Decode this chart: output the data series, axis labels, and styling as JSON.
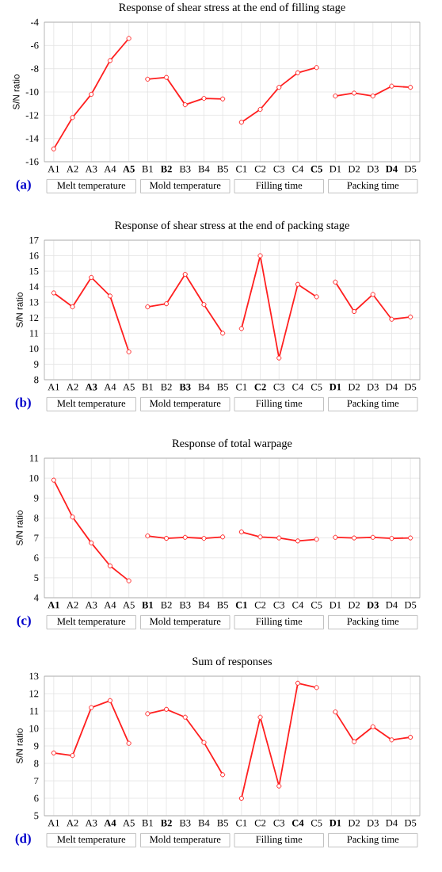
{
  "chart_data": [
    {
      "type": "line",
      "title": "Response of shear stress at the end of filling stage",
      "ylabel": "S/N ratio",
      "categories": [
        "A1",
        "A2",
        "A3",
        "A4",
        "**A5**",
        "B1",
        "**B2**",
        "B3",
        "B4",
        "B5",
        "C1",
        "C2",
        "C3",
        "C4",
        "**C5**",
        "D1",
        "D2",
        "D3",
        "**D4**",
        "D5"
      ],
      "series": [
        {
          "color": "#ff2020",
          "values": [
            -14.9,
            -12.2,
            -10.2,
            -7.3,
            -5.4,
            null,
            null,
            null,
            null,
            null,
            null,
            null,
            null,
            null,
            null,
            null,
            null,
            null,
            null,
            null
          ]
        },
        {
          "color": "#ff2020",
          "values": [
            null,
            null,
            null,
            null,
            null,
            -8.9,
            -8.75,
            -11.1,
            -10.55,
            -10.6,
            null,
            null,
            null,
            null,
            null,
            null,
            null,
            null,
            null,
            null
          ]
        },
        {
          "color": "#ff2020",
          "values": [
            null,
            null,
            null,
            null,
            null,
            null,
            null,
            null,
            null,
            null,
            -12.6,
            -11.5,
            -9.6,
            -8.35,
            -7.9,
            null,
            null,
            null,
            null,
            null
          ]
        },
        {
          "color": "#ff2020",
          "values": [
            null,
            null,
            null,
            null,
            null,
            null,
            null,
            null,
            null,
            null,
            null,
            null,
            null,
            null,
            null,
            -10.35,
            -10.1,
            -10.35,
            -9.5,
            -9.6
          ]
        }
      ],
      "ylim": [
        -16,
        -4
      ],
      "yticks": [
        -16,
        -14,
        -12,
        -10,
        -8,
        -6,
        -4
      ],
      "grid": true,
      "marker": "circle",
      "annotations": [
        "(a)",
        "Melt temperature",
        "Mold temperature",
        "Filling time",
        "Packing time"
      ]
    },
    {
      "type": "line",
      "title": "Response of shear stress at the end of packing stage",
      "ylabel": "S/N ratio",
      "categories": [
        "A1",
        "A2",
        "**A3**",
        "A4",
        "A5",
        "B1",
        "B2",
        "**B3**",
        "B4",
        "B5",
        "C1",
        "**C2**",
        "C3",
        "C4",
        "C5",
        "**D1**",
        "D2",
        "D3",
        "D4",
        "D5"
      ],
      "series": [
        {
          "color": "#ff2020",
          "values": [
            13.6,
            12.7,
            14.6,
            13.4,
            9.8,
            null,
            null,
            null,
            null,
            null,
            null,
            null,
            null,
            null,
            null,
            null,
            null,
            null,
            null,
            null
          ]
        },
        {
          "color": "#ff2020",
          "values": [
            null,
            null,
            null,
            null,
            null,
            12.7,
            12.9,
            14.8,
            12.85,
            11.0,
            null,
            null,
            null,
            null,
            null,
            null,
            null,
            null,
            null,
            null
          ]
        },
        {
          "color": "#ff2020",
          "values": [
            null,
            null,
            null,
            null,
            null,
            null,
            null,
            null,
            null,
            null,
            11.3,
            16.0,
            9.4,
            14.15,
            13.35,
            null,
            null,
            null,
            null,
            null
          ]
        },
        {
          "color": "#ff2020",
          "values": [
            null,
            null,
            null,
            null,
            null,
            null,
            null,
            null,
            null,
            null,
            null,
            null,
            null,
            null,
            null,
            14.3,
            12.4,
            13.5,
            11.9,
            12.05
          ]
        }
      ],
      "ylim": [
        8,
        17
      ],
      "yticks": [
        8,
        9,
        10,
        11,
        12,
        13,
        14,
        15,
        16,
        17
      ],
      "grid": true,
      "marker": "circle",
      "annotations": [
        "(b)",
        "Melt temperature",
        "Mold temperature",
        "Filling time",
        "Packing time"
      ]
    },
    {
      "type": "line",
      "title": "Response of total warpage",
      "ylabel": "S/N ratio",
      "categories": [
        "**A1**",
        "A2",
        "A3",
        "A4",
        "A5",
        "**B1**",
        "B2",
        "B3",
        "B4",
        "B5",
        "**C1**",
        "C2",
        "C3",
        "C4",
        "C5",
        "D1",
        "D2",
        "**D3**",
        "D4",
        "D5"
      ],
      "series": [
        {
          "color": "#ff2020",
          "values": [
            9.9,
            8.05,
            6.75,
            5.6,
            4.85,
            null,
            null,
            null,
            null,
            null,
            null,
            null,
            null,
            null,
            null,
            null,
            null,
            null,
            null,
            null
          ]
        },
        {
          "color": "#ff2020",
          "values": [
            null,
            null,
            null,
            null,
            null,
            7.1,
            6.98,
            7.03,
            6.98,
            7.05,
            null,
            null,
            null,
            null,
            null,
            null,
            null,
            null,
            null,
            null
          ]
        },
        {
          "color": "#ff2020",
          "values": [
            null,
            null,
            null,
            null,
            null,
            null,
            null,
            null,
            null,
            null,
            7.3,
            7.05,
            7.0,
            6.85,
            6.93,
            null,
            null,
            null,
            null,
            null
          ]
        },
        {
          "color": "#ff2020",
          "values": [
            null,
            null,
            null,
            null,
            null,
            null,
            null,
            null,
            null,
            null,
            null,
            null,
            null,
            null,
            null,
            7.03,
            7.0,
            7.03,
            6.98,
            7.0
          ]
        }
      ],
      "ylim": [
        4,
        11
      ],
      "yticks": [
        4,
        5,
        6,
        7,
        8,
        9,
        10,
        11
      ],
      "grid": true,
      "marker": "circle",
      "annotations": [
        "(c)",
        "Melt temperature",
        "Mold temperature",
        "Filling time",
        "Packing time"
      ]
    },
    {
      "type": "line",
      "title": "Sum of responses",
      "ylabel": "S/N ratio",
      "categories": [
        "A1",
        "A2",
        "A3",
        "**A4**",
        "A5",
        "B1",
        "**B2**",
        "B3",
        "B4",
        "B5",
        "C1",
        "C2",
        "C3",
        "**C4**",
        "C5",
        "**D1**",
        "D2",
        "D3",
        "D4",
        "D5"
      ],
      "series": [
        {
          "color": "#ff2020",
          "values": [
            8.6,
            8.45,
            11.2,
            11.6,
            9.15,
            null,
            null,
            null,
            null,
            null,
            null,
            null,
            null,
            null,
            null,
            null,
            null,
            null,
            null,
            null
          ]
        },
        {
          "color": "#ff2020",
          "values": [
            null,
            null,
            null,
            null,
            null,
            10.85,
            11.1,
            10.65,
            9.2,
            7.35,
            null,
            null,
            null,
            null,
            null,
            null,
            null,
            null,
            null,
            null
          ]
        },
        {
          "color": "#ff2020",
          "values": [
            null,
            null,
            null,
            null,
            null,
            null,
            null,
            null,
            null,
            null,
            6.0,
            10.65,
            6.7,
            12.6,
            12.35,
            null,
            null,
            null,
            null,
            null
          ]
        },
        {
          "color": "#ff2020",
          "values": [
            null,
            null,
            null,
            null,
            null,
            null,
            null,
            null,
            null,
            null,
            null,
            null,
            null,
            null,
            null,
            10.95,
            9.25,
            10.1,
            9.35,
            9.5
          ]
        }
      ],
      "ylim": [
        5,
        13
      ],
      "yticks": [
        5,
        6,
        7,
        8,
        9,
        10,
        11,
        12,
        13
      ],
      "grid": true,
      "marker": "circle",
      "annotations": [
        "(d)",
        "Melt temperature",
        "Mold temperature",
        "Filling time",
        "Packing time"
      ]
    }
  ]
}
